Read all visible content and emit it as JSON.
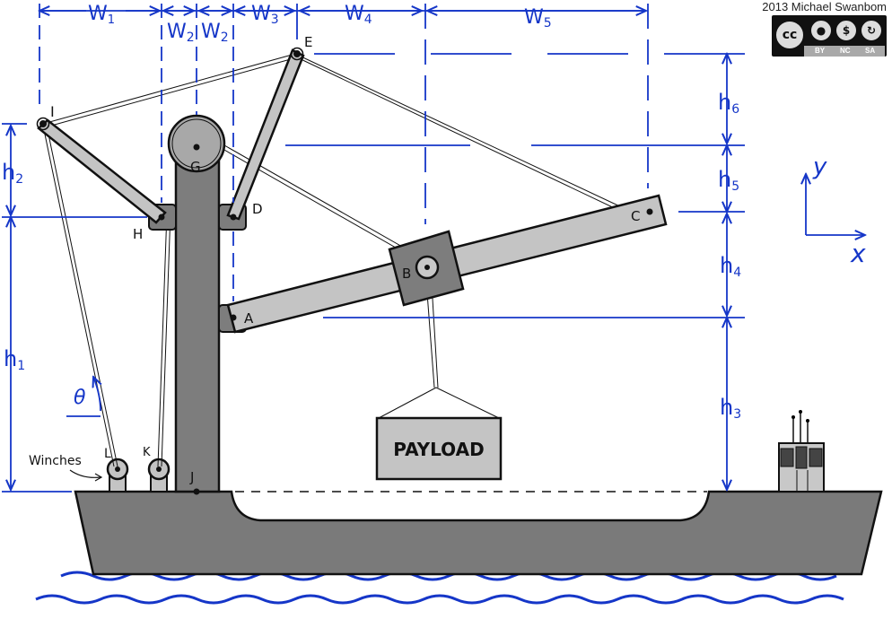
{
  "credit": "2013 Michael Swanbom",
  "license_badge": {
    "cc": "cc",
    "by": "BY",
    "nc": "NC",
    "sa": "SA"
  },
  "points": {
    "A": "A",
    "B": "B",
    "C": "C",
    "D": "D",
    "E": "E",
    "G": "G",
    "H": "H",
    "I": "I",
    "J": "J",
    "K": "K",
    "L": "L"
  },
  "dims": {
    "w1": "W",
    "w1_sub": "1",
    "w2a": "W",
    "w2a_sub": "2",
    "w2b": "W",
    "w2b_sub": "2",
    "w3": "W",
    "w3_sub": "3",
    "w4": "W",
    "w4_sub": "4",
    "w5": "W",
    "w5_sub": "5",
    "h1": "h",
    "h1_sub": "1",
    "h2": "h",
    "h2_sub": "2",
    "h3": "h",
    "h3_sub": "3",
    "h4": "h",
    "h4_sub": "4",
    "h5": "h",
    "h5_sub": "5",
    "h6": "h",
    "h6_sub": "6"
  },
  "theta": "θ",
  "axes": {
    "x": "x",
    "y": "y"
  },
  "payload_label": "PAYLOAD",
  "winches_label": "Winches",
  "colors": {
    "dimension": "#1536c8",
    "structure": "#7d7d7d",
    "boom": "#c4c4c4",
    "hull": "#7a7a7a",
    "water": "#1536c8"
  }
}
